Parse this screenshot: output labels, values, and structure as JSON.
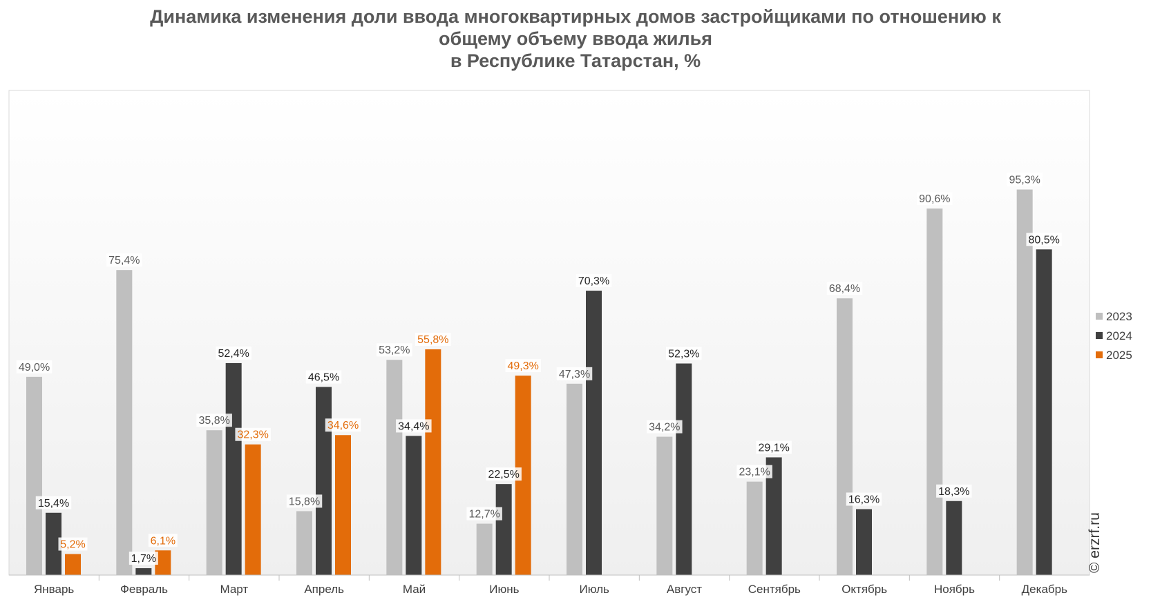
{
  "title_lines": [
    "Динамика изменения доли ввода многоквартирных домов застройщиками по отношению к",
    "общему объему ввода жилья",
    "в Республике Татарстан, %"
  ],
  "watermark": "© erzrf.ru",
  "colors": {
    "2023": "#BFBFBF",
    "2024": "#404040",
    "2025": "#E36C0A"
  },
  "chart_data": {
    "type": "bar",
    "title": "Динамика изменения доли ввода многоквартирных домов застройщиками по отношению к общему объему ввода жилья в Республике Татарстан, %",
    "categories": [
      "Январь",
      "Февраль",
      "Март",
      "Апрель",
      "Май",
      "Июнь",
      "Июль",
      "Август",
      "Сентябрь",
      "Октябрь",
      "Ноябрь",
      "Декабрь"
    ],
    "ylim": [
      0,
      100
    ],
    "grid": false,
    "legend": "right",
    "series": [
      {
        "name": "2023",
        "values": [
          49.0,
          75.4,
          35.8,
          15.8,
          53.2,
          12.7,
          47.3,
          34.2,
          23.1,
          68.4,
          90.6,
          95.3
        ],
        "labels": [
          "49,0%",
          "75,4%",
          "35,8%",
          "15,8%",
          "53,2%",
          "12,7%",
          "47,3%",
          "34,2%",
          "23,1%",
          "68,4%",
          "90,6%",
          "95,3%"
        ]
      },
      {
        "name": "2024",
        "values": [
          15.4,
          1.7,
          52.4,
          46.5,
          34.4,
          22.5,
          70.3,
          52.3,
          29.1,
          16.3,
          18.3,
          80.5
        ],
        "labels": [
          "15,4%",
          "1,7%",
          "52,4%",
          "46,5%",
          "34,4%",
          "22,5%",
          "70,3%",
          "52,3%",
          "29,1%",
          "16,3%",
          "18,3%",
          "80,5%"
        ]
      },
      {
        "name": "2025",
        "values": [
          5.2,
          6.1,
          32.3,
          34.6,
          55.8,
          49.3,
          null,
          null,
          null,
          null,
          null,
          null
        ],
        "labels": [
          "5,2%",
          "6,1%",
          "32,3%",
          "34,6%",
          "55,8%",
          "49,3%",
          "",
          "",
          "",
          "",
          "",
          ""
        ]
      }
    ]
  }
}
